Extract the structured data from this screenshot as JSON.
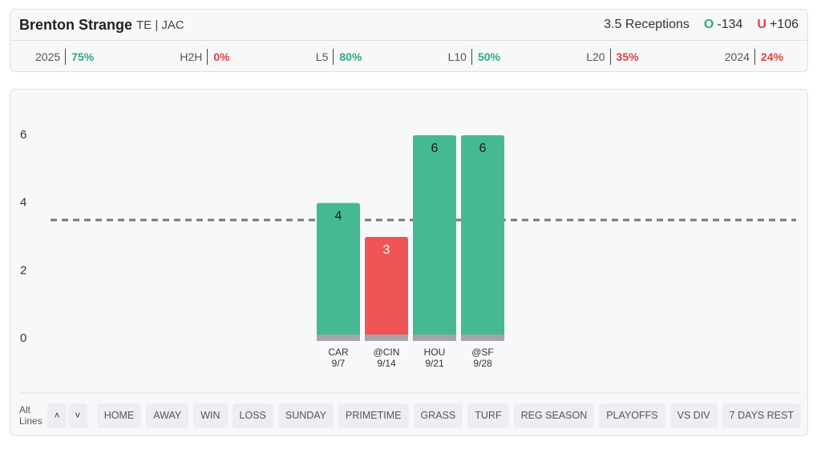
{
  "header": {
    "player": "Brenton Strange",
    "position": "TE | JAC",
    "line": "3.5 Receptions",
    "over_icon": "O",
    "over_odds": "-134",
    "under_icon": "U",
    "under_odds": "+106"
  },
  "stats": [
    {
      "label": "2025",
      "value": "75%",
      "tone": "good"
    },
    {
      "label": "H2H",
      "value": "0%",
      "tone": "bad"
    },
    {
      "label": "L5",
      "value": "80%",
      "tone": "good"
    },
    {
      "label": "L10",
      "value": "50%",
      "tone": "good"
    },
    {
      "label": "L20",
      "value": "35%",
      "tone": "bad"
    },
    {
      "label": "2024",
      "value": "24%",
      "tone": "bad"
    }
  ],
  "chart_data": {
    "type": "bar",
    "categories": [
      "CAR",
      "@CIN",
      "HOU",
      "@SF"
    ],
    "dates": [
      "9/7",
      "9/14",
      "9/21",
      "9/28"
    ],
    "values": [
      4,
      3,
      6,
      6
    ],
    "colors": [
      "#46b994",
      "#ef5457",
      "#46b994",
      "#46b994"
    ],
    "label_colors": [
      "#1a1a1a",
      "#ffffff",
      "#1a1a1a",
      "#1a1a1a"
    ],
    "threshold": 3.5,
    "ylim": [
      0,
      6
    ],
    "yticks": [
      0,
      2,
      4,
      6
    ]
  },
  "controls": {
    "alt_lines": "Alt Lines",
    "up": "˄",
    "down": "˅"
  },
  "filters": [
    "HOME",
    "AWAY",
    "WIN",
    "LOSS",
    "SUNDAY",
    "PRIMETIME",
    "GRASS",
    "TURF",
    "REG SEASON",
    "PLAYOFFS",
    "VS DIV",
    "7 DAYS REST"
  ]
}
